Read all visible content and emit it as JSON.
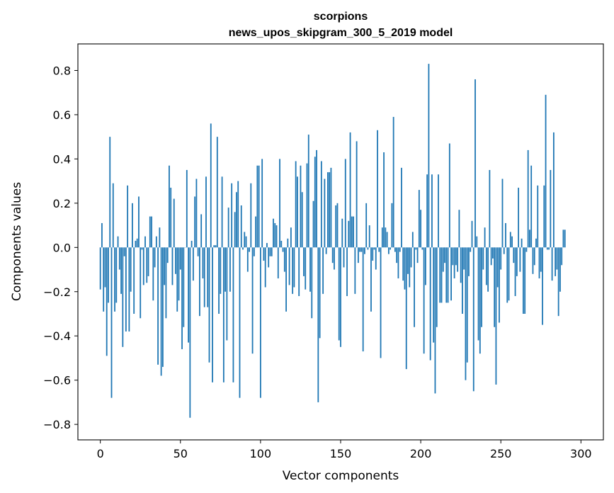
{
  "chart_data": {
    "type": "bar",
    "title": "scorpions",
    "subtitle": "news_upos_skipgram_300_5_2019 model",
    "xlabel": "Vector components",
    "ylabel": "Components values",
    "xlim": [
      -14,
      314
    ],
    "ylim": [
      -0.87,
      0.92
    ],
    "x_ticks": [
      0,
      50,
      100,
      150,
      200,
      250,
      300
    ],
    "x_tick_labels": [
      "0",
      "50",
      "100",
      "150",
      "200",
      "250",
      "300"
    ],
    "y_ticks": [
      -0.8,
      -0.6,
      -0.4,
      -0.2,
      0.0,
      0.2,
      0.4,
      0.6,
      0.8
    ],
    "y_tick_labels": [
      "−0.8",
      "−0.6",
      "−0.4",
      "−0.2",
      "0.0",
      "0.2",
      "0.4",
      "0.6",
      "0.8"
    ],
    "grid": false,
    "bar_color": "#1f77b4",
    "values": [
      -0.19,
      0.11,
      -0.29,
      -0.18,
      -0.49,
      -0.25,
      0.5,
      -0.68,
      0.29,
      -0.29,
      -0.25,
      0.05,
      -0.1,
      -0.21,
      -0.45,
      -0.04,
      -0.38,
      0.28,
      -0.38,
      -0.2,
      0.2,
      -0.3,
      0.03,
      0.04,
      0.23,
      -0.32,
      -0.01,
      -0.17,
      0.05,
      -0.16,
      -0.13,
      0.14,
      0.14,
      -0.24,
      -0.09,
      0.05,
      -0.53,
      0.09,
      -0.58,
      -0.54,
      -0.17,
      -0.32,
      -0.07,
      0.37,
      0.27,
      -0.17,
      0.22,
      -0.12,
      -0.29,
      -0.24,
      -0.1,
      -0.46,
      -0.36,
      0.0,
      0.35,
      -0.43,
      -0.77,
      0.03,
      -0.15,
      0.23,
      0.31,
      -0.04,
      -0.31,
      0.15,
      -0.14,
      -0.27,
      0.32,
      -0.27,
      -0.52,
      0.56,
      -0.61,
      0.01,
      0.01,
      0.5,
      -0.3,
      -0.21,
      0.32,
      -0.61,
      -0.2,
      -0.42,
      0.18,
      -0.2,
      0.29,
      -0.61,
      0.16,
      0.25,
      0.3,
      -0.68,
      0.19,
      -0.01,
      0.07,
      0.05,
      -0.11,
      -0.02,
      0.29,
      -0.48,
      -0.04,
      0.14,
      0.37,
      0.37,
      -0.68,
      0.4,
      -0.06,
      -0.18,
      0.02,
      -0.09,
      -0.04,
      -0.04,
      0.13,
      0.11,
      0.1,
      -0.14,
      0.4,
      0.03,
      -0.02,
      -0.11,
      -0.29,
      0.04,
      -0.17,
      0.09,
      -0.21,
      -0.18,
      0.39,
      0.32,
      -0.22,
      0.37,
      0.25,
      -0.13,
      -0.19,
      0.38,
      0.51,
      -0.2,
      -0.32,
      0.21,
      0.41,
      0.44,
      -0.7,
      -0.41,
      0.39,
      -0.21,
      0.31,
      -0.03,
      0.34,
      0.34,
      0.36,
      -0.07,
      -0.1,
      0.19,
      0.2,
      -0.42,
      -0.45,
      0.13,
      -0.09,
      0.4,
      -0.22,
      0.12,
      0.52,
      0.14,
      0.14,
      -0.21,
      0.48,
      -0.07,
      -0.02,
      -0.02,
      -0.47,
      -0.03,
      0.2,
      -0.01,
      0.1,
      -0.29,
      -0.06,
      -0.01,
      -0.1,
      0.53,
      -0.02,
      -0.5,
      0.09,
      0.43,
      0.09,
      0.07,
      -0.03,
      -0.01,
      0.2,
      0.59,
      -0.02,
      -0.07,
      -0.14,
      -0.02,
      0.36,
      -0.15,
      -0.19,
      -0.55,
      -0.12,
      -0.18,
      -0.09,
      0.07,
      -0.36,
      -0.01,
      -0.07,
      0.26,
      0.17,
      -0.01,
      -0.48,
      -0.17,
      0.33,
      0.83,
      -0.51,
      0.33,
      -0.43,
      -0.66,
      -0.36,
      0.33,
      -0.25,
      -0.25,
      -0.11,
      -0.07,
      -0.25,
      -0.25,
      0.47,
      -0.24,
      -0.08,
      -0.14,
      -0.08,
      -0.11,
      0.17,
      -0.16,
      -0.3,
      -0.1,
      -0.6,
      -0.52,
      -0.13,
      -0.02,
      0.12,
      -0.65,
      0.76,
      0.05,
      -0.42,
      -0.48,
      -0.36,
      -0.1,
      0.09,
      -0.17,
      -0.2,
      0.35,
      -0.08,
      -0.05,
      -0.36,
      -0.62,
      -0.18,
      -0.34,
      -0.1,
      0.31,
      -0.03,
      0.11,
      -0.25,
      -0.24,
      0.07,
      0.05,
      -0.07,
      -0.22,
      -0.13,
      0.27,
      -0.11,
      0.04,
      -0.3,
      -0.3,
      -0.02,
      0.44,
      0.08,
      0.37,
      -0.12,
      -0.08,
      0.04,
      0.28,
      -0.14,
      -0.11,
      -0.35,
      0.28,
      0.69,
      -0.01,
      -0.01,
      0.35,
      -0.15,
      0.52,
      -0.13,
      -0.1,
      -0.31,
      -0.2,
      -0.08,
      0.08,
      0.08
    ]
  }
}
